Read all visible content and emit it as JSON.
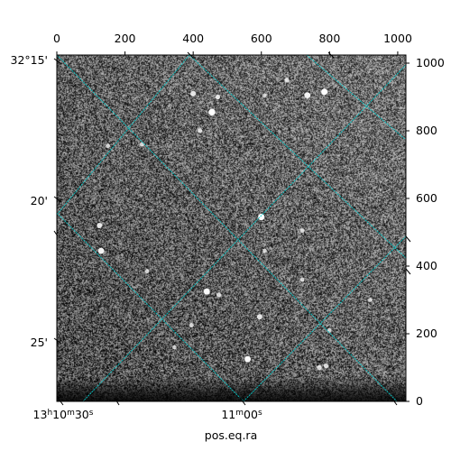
{
  "chart_data": {
    "type": "heatmap",
    "title": "",
    "xlabel": "pos.eq.ra",
    "ylabel": "",
    "pixel_axes": {
      "x_range": [
        0,
        1024
      ],
      "y_range": [
        0,
        1024
      ],
      "top_ticks": [
        0,
        200,
        400,
        600,
        800,
        1000
      ],
      "top_tick_labels": [
        "0",
        "200",
        "400",
        "600",
        "800",
        "1000"
      ],
      "right_ticks": [
        0,
        200,
        400,
        600,
        800,
        1000
      ],
      "right_tick_labels": [
        "0",
        "200",
        "400",
        "600",
        "800",
        "1000"
      ]
    },
    "world_axes": {
      "ra_tick_labels": [
        "13h10m30s",
        "11m00s"
      ],
      "dec_tick_labels": [
        "32°15'",
        "20'",
        "25'"
      ]
    },
    "grid": true,
    "grid_color": "#00c8c8",
    "colormap": "gray",
    "stars": [
      {
        "x": 455,
        "y": 855,
        "brightness": 1.0
      },
      {
        "x": 785,
        "y": 915,
        "brightness": 0.95
      },
      {
        "x": 735,
        "y": 905,
        "brightness": 0.85
      },
      {
        "x": 400,
        "y": 910,
        "brightness": 0.7
      },
      {
        "x": 472,
        "y": 900,
        "brightness": 0.55
      },
      {
        "x": 420,
        "y": 800,
        "brightness": 0.5
      },
      {
        "x": 675,
        "y": 950,
        "brightness": 0.5
      },
      {
        "x": 600,
        "y": 545,
        "brightness": 0.95
      },
      {
        "x": 720,
        "y": 505,
        "brightness": 0.5
      },
      {
        "x": 125,
        "y": 520,
        "brightness": 0.7
      },
      {
        "x": 130,
        "y": 445,
        "brightness": 0.85
      },
      {
        "x": 440,
        "y": 325,
        "brightness": 0.9
      },
      {
        "x": 475,
        "y": 315,
        "brightness": 0.5
      },
      {
        "x": 595,
        "y": 250,
        "brightness": 0.7
      },
      {
        "x": 395,
        "y": 225,
        "brightness": 0.5
      },
      {
        "x": 560,
        "y": 125,
        "brightness": 0.9
      },
      {
        "x": 770,
        "y": 100,
        "brightness": 0.6
      },
      {
        "x": 790,
        "y": 105,
        "brightness": 0.55
      },
      {
        "x": 150,
        "y": 755,
        "brightness": 0.45
      },
      {
        "x": 250,
        "y": 760,
        "brightness": 0.45
      },
      {
        "x": 265,
        "y": 385,
        "brightness": 0.45
      },
      {
        "x": 720,
        "y": 360,
        "brightness": 0.45
      },
      {
        "x": 800,
        "y": 210,
        "brightness": 0.45
      },
      {
        "x": 920,
        "y": 300,
        "brightness": 0.45
      },
      {
        "x": 610,
        "y": 445,
        "brightness": 0.45
      },
      {
        "x": 345,
        "y": 160,
        "brightness": 0.4
      },
      {
        "x": 610,
        "y": 905,
        "brightness": 0.4
      }
    ]
  }
}
